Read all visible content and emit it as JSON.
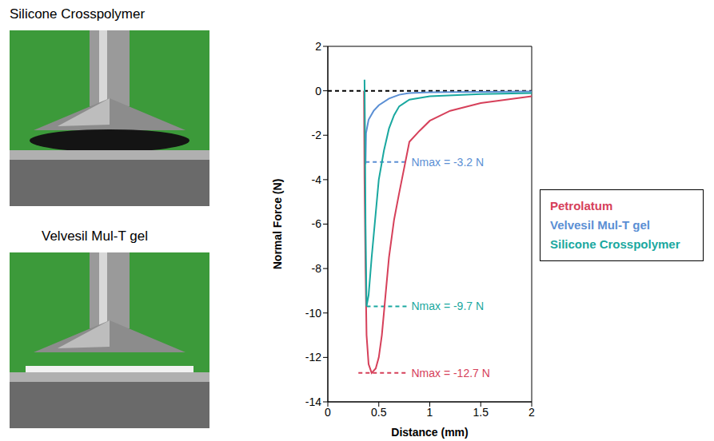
{
  "photos": [
    {
      "label": "Silicone Crosspolymer"
    },
    {
      "label": "Velvesil Mul-T gel"
    }
  ],
  "chart_data": {
    "type": "line",
    "x_label": "Distance (mm)",
    "y_label": "Normal Force (N)",
    "xlim": [
      0,
      2
    ],
    "xticks": [
      0,
      0.5,
      1,
      1.5,
      2
    ],
    "ylim": [
      -14,
      2
    ],
    "yticks": [
      -14,
      -12,
      -10,
      -8,
      -6,
      -4,
      -2,
      0,
      2
    ],
    "legend": "right",
    "series": [
      {
        "name": "Petrolatum",
        "color": "#d6405a",
        "x": [
          0.355,
          0.36,
          0.37,
          0.38,
          0.4,
          0.43,
          0.47,
          0.5,
          0.53,
          0.56,
          0.6,
          0.65,
          0.7,
          0.8,
          0.9,
          1.0,
          1.2,
          1.5,
          1.75,
          2.0
        ],
        "values": [
          0,
          -4,
          -8,
          -11,
          -12.3,
          -12.7,
          -12.5,
          -12,
          -11,
          -9.5,
          -7.5,
          -5.8,
          -4.6,
          -2.3,
          -1.8,
          -1.35,
          -0.9,
          -0.55,
          -0.4,
          -0.25
        ]
      },
      {
        "name": "Velvesil Mul-T gel",
        "color": "#5b8fd4",
        "x": [
          0.37,
          0.375,
          0.4,
          0.45,
          0.5,
          0.6,
          0.7,
          0.8,
          1.0,
          1.5,
          2.0
        ],
        "values": [
          -3.3,
          -1.9,
          -1.3,
          -0.9,
          -0.65,
          -0.35,
          -0.18,
          -0.1,
          -0.07,
          -0.05,
          -0.03
        ]
      },
      {
        "name": "Silicone Crosspolymer",
        "color": "#1aa8a0",
        "x": [
          0.36,
          0.365,
          0.37,
          0.38,
          0.4,
          0.43,
          0.47,
          0.5,
          0.55,
          0.6,
          0.65,
          0.7,
          0.8,
          1.0,
          1.5,
          2.0
        ],
        "values": [
          0.5,
          -2,
          -6,
          -9.7,
          -9.2,
          -7.5,
          -5.5,
          -4,
          -2.7,
          -1.7,
          -1.1,
          -0.7,
          -0.4,
          -0.25,
          -0.15,
          -0.1
        ]
      }
    ],
    "annotations": [
      {
        "y": 0,
        "x_start": 0,
        "x_end": 2,
        "color": "#000000"
      },
      {
        "y": -3.2,
        "x_start": 0.37,
        "x_end": 0.78,
        "color": "#5b8fd4",
        "label": "Nmax = -3.2 N"
      },
      {
        "y": -9.7,
        "x_start": 0.38,
        "x_end": 0.78,
        "color": "#1aa8a0",
        "label": "Nmax = -9.7 N"
      },
      {
        "y": -12.7,
        "x_start": 0.3,
        "x_end": 0.78,
        "color": "#d6405a",
        "label": "Nmax = -12.7 N"
      }
    ]
  }
}
